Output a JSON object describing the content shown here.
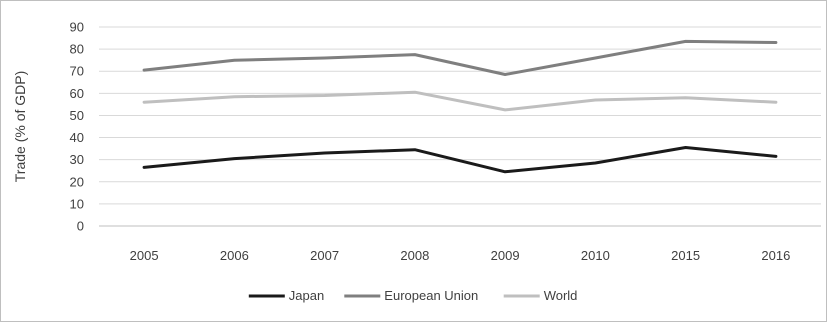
{
  "chart_data": {
    "type": "line",
    "title": "",
    "xlabel": "",
    "ylabel": "Trade (% of GDP)",
    "categories": [
      "2005",
      "2006",
      "2007",
      "2008",
      "2009",
      "2010",
      "2015",
      "2016"
    ],
    "ylim": [
      0,
      90
    ],
    "yticks": [
      0,
      10,
      20,
      30,
      40,
      50,
      60,
      70,
      80,
      90
    ],
    "grid": true,
    "legend_position": "bottom",
    "series": [
      {
        "name": "Japan",
        "color": "#1a1a1a",
        "values": [
          26.5,
          30.5,
          33,
          34.5,
          24.5,
          28.5,
          35.5,
          31.5
        ]
      },
      {
        "name": "European Union",
        "color": "#7f7f7f",
        "values": [
          70.5,
          75,
          76,
          77.5,
          68.5,
          76,
          83.5,
          83
        ]
      },
      {
        "name": "World",
        "color": "#bfbfbf",
        "values": [
          56,
          58.5,
          59,
          60.5,
          52.5,
          57,
          58,
          56
        ]
      }
    ]
  }
}
